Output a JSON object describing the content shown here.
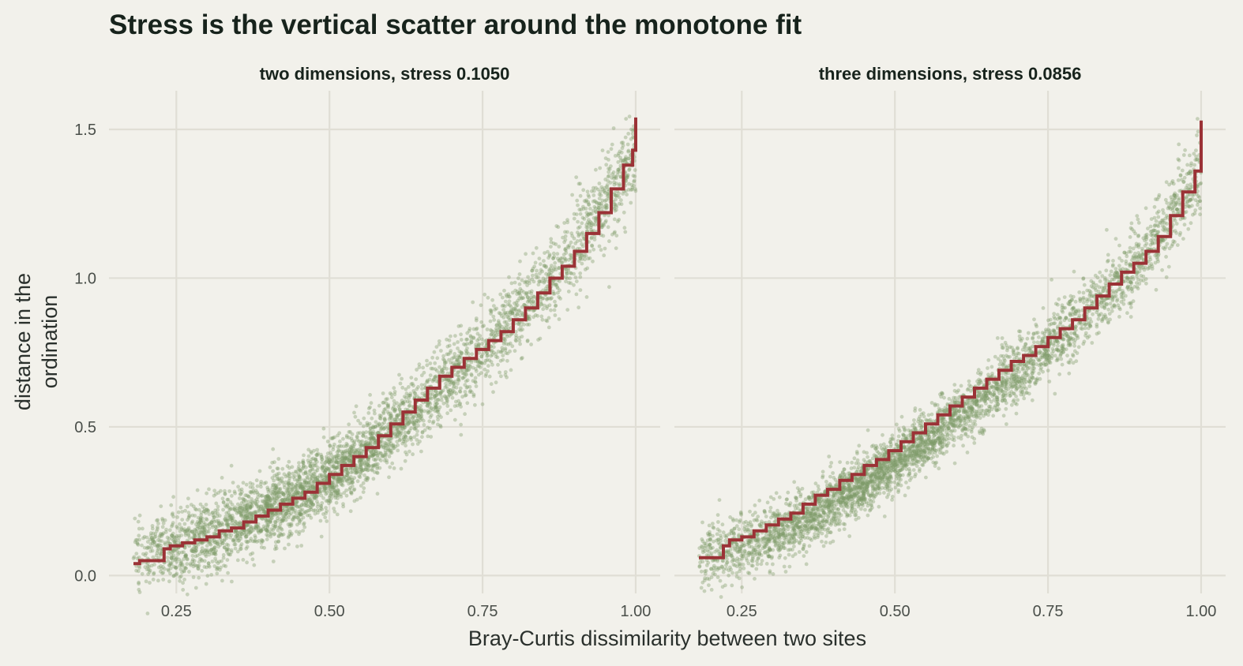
{
  "title": "Stress is the vertical scatter around the monotone fit",
  "xlabel": "Bray-Curtis dissimilarity between two sites",
  "ylabel_lines": [
    "distance in the",
    "ordination"
  ],
  "colors": {
    "background": "#f2f1eb",
    "grid": "#e0ded5",
    "points": "#7f9a6a",
    "fit": "#9b3236"
  },
  "chart_data": [
    {
      "type": "scatter",
      "title": "two dimensions, stress 0.1050",
      "xlim": [
        0.14,
        1.04
      ],
      "ylim": [
        -0.06,
        1.63
      ],
      "x_ticks": [
        0.25,
        0.5,
        0.75,
        1.0
      ],
      "x_tick_labels": [
        "0.25",
        "0.50",
        "0.75",
        "1.00"
      ],
      "y_ticks": [
        0.0,
        0.5,
        1.0,
        1.5
      ],
      "y_tick_labels": [
        "0.0",
        "0.5",
        "1.0",
        "1.5"
      ],
      "grid": true,
      "series": [
        {
          "kind": "points",
          "n_points": 4000,
          "x_range": [
            0.18,
            1.0
          ],
          "trend": {
            "x": [
              0.18,
              0.25,
              0.3,
              0.35,
              0.4,
              0.45,
              0.5,
              0.55,
              0.6,
              0.65,
              0.7,
              0.75,
              0.8,
              0.85,
              0.9,
              0.95,
              1.0
            ],
            "y": [
              0.05,
              0.1,
              0.13,
              0.17,
              0.22,
              0.27,
              0.33,
              0.4,
              0.49,
              0.58,
              0.67,
              0.76,
              0.86,
              0.97,
              1.1,
              1.25,
              1.42
            ]
          },
          "spread": 0.05
        },
        {
          "kind": "step",
          "x": [
            0.18,
            0.19,
            0.23,
            0.24,
            0.26,
            0.28,
            0.3,
            0.32,
            0.34,
            0.36,
            0.38,
            0.4,
            0.42,
            0.44,
            0.46,
            0.48,
            0.5,
            0.52,
            0.54,
            0.56,
            0.58,
            0.6,
            0.62,
            0.64,
            0.66,
            0.68,
            0.7,
            0.72,
            0.74,
            0.76,
            0.78,
            0.8,
            0.82,
            0.84,
            0.86,
            0.88,
            0.9,
            0.92,
            0.94,
            0.96,
            0.98,
            0.995,
            1.0
          ],
          "y": [
            0.04,
            0.05,
            0.09,
            0.1,
            0.11,
            0.12,
            0.13,
            0.15,
            0.16,
            0.18,
            0.2,
            0.22,
            0.24,
            0.26,
            0.28,
            0.31,
            0.34,
            0.37,
            0.4,
            0.43,
            0.47,
            0.51,
            0.55,
            0.59,
            0.63,
            0.67,
            0.7,
            0.73,
            0.76,
            0.79,
            0.82,
            0.86,
            0.9,
            0.95,
            1.0,
            1.04,
            1.09,
            1.15,
            1.22,
            1.3,
            1.38,
            1.43,
            1.54
          ]
        }
      ]
    },
    {
      "type": "scatter",
      "title": "three dimensions, stress 0.0856",
      "xlim": [
        0.14,
        1.04
      ],
      "ylim": [
        -0.06,
        1.63
      ],
      "x_ticks": [
        0.25,
        0.5,
        0.75,
        1.0
      ],
      "x_tick_labels": [
        "0.25",
        "0.50",
        "0.75",
        "1.00"
      ],
      "y_ticks": [
        0.0,
        0.5,
        1.0,
        1.5
      ],
      "y_tick_labels": [
        "0.0",
        "0.5",
        "1.0",
        "1.5"
      ],
      "grid": true,
      "series": [
        {
          "kind": "points",
          "n_points": 4000,
          "x_range": [
            0.18,
            1.0
          ],
          "trend": {
            "x": [
              0.18,
              0.25,
              0.3,
              0.35,
              0.4,
              0.45,
              0.5,
              0.55,
              0.6,
              0.65,
              0.7,
              0.75,
              0.8,
              0.85,
              0.9,
              0.95,
              1.0
            ],
            "y": [
              0.06,
              0.1,
              0.13,
              0.18,
              0.25,
              0.31,
              0.38,
              0.45,
              0.53,
              0.61,
              0.69,
              0.77,
              0.85,
              0.95,
              1.06,
              1.2,
              1.37
            ]
          },
          "spread": 0.04
        },
        {
          "kind": "step",
          "x": [
            0.18,
            0.22,
            0.23,
            0.25,
            0.27,
            0.29,
            0.31,
            0.33,
            0.35,
            0.37,
            0.39,
            0.41,
            0.43,
            0.45,
            0.47,
            0.49,
            0.51,
            0.53,
            0.55,
            0.57,
            0.59,
            0.61,
            0.63,
            0.65,
            0.67,
            0.69,
            0.71,
            0.73,
            0.75,
            0.77,
            0.79,
            0.81,
            0.83,
            0.85,
            0.87,
            0.89,
            0.91,
            0.93,
            0.95,
            0.97,
            0.99,
            1.0
          ],
          "y": [
            0.06,
            0.1,
            0.12,
            0.13,
            0.15,
            0.17,
            0.19,
            0.21,
            0.24,
            0.27,
            0.29,
            0.32,
            0.34,
            0.37,
            0.39,
            0.42,
            0.45,
            0.48,
            0.51,
            0.54,
            0.57,
            0.6,
            0.63,
            0.66,
            0.69,
            0.72,
            0.74,
            0.77,
            0.8,
            0.83,
            0.86,
            0.9,
            0.94,
            0.98,
            1.02,
            1.05,
            1.09,
            1.14,
            1.21,
            1.29,
            1.36,
            1.53
          ]
        }
      ]
    }
  ]
}
